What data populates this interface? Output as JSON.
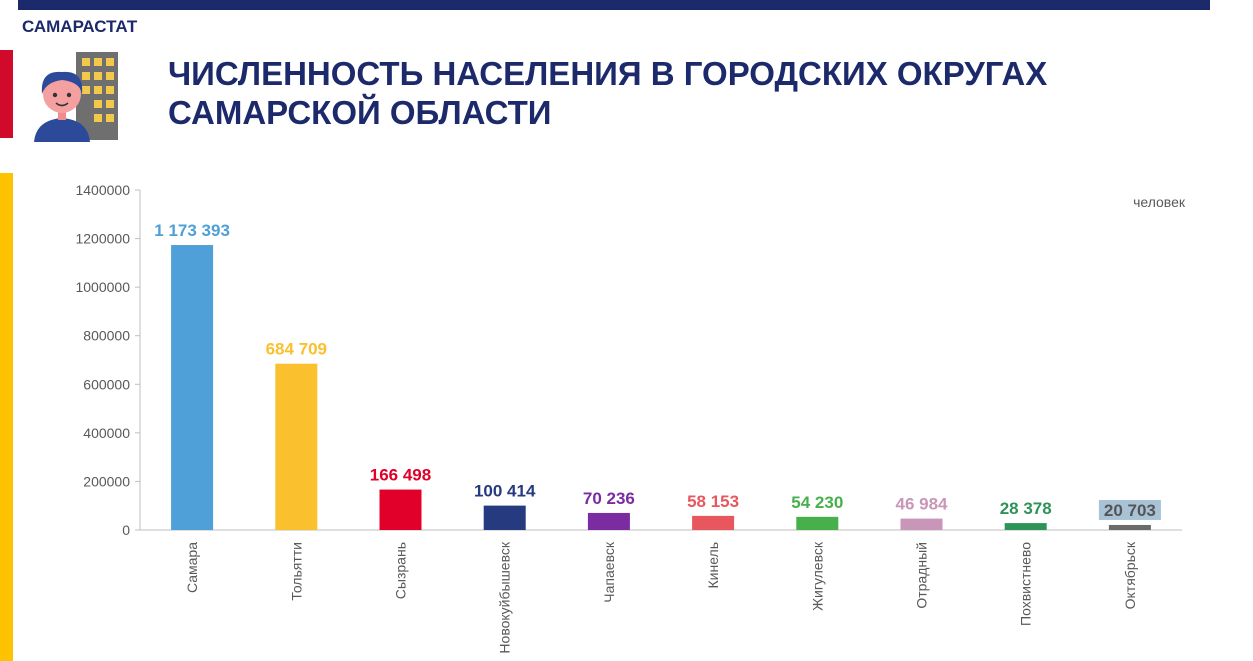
{
  "brand": "САМАРАСТАТ",
  "title_lines": [
    "ЧИСЛЕННОСТЬ НАСЕЛЕНИЯ В ГОРОДСКИХ ОКРУГАХ",
    "САМАРСКОЙ ОБЛАСТИ"
  ],
  "colors": {
    "brand_navy": "#1c2a6b",
    "accent_red": "#d10a2c",
    "accent_yellow": "#fdc300"
  },
  "chart_data": {
    "type": "bar",
    "unit_label": "человек",
    "categories": [
      "Самара",
      "Тольятти",
      "Сызрань",
      "Новокуйбышевск",
      "Чапаевск",
      "Кинель",
      "Жигулевск",
      "Отрадный",
      "Похвистнево",
      "Октябрьск"
    ],
    "values": [
      1173393,
      684709,
      166498,
      100414,
      70236,
      58153,
      54230,
      46984,
      28378,
      20703
    ],
    "value_labels": [
      "1 173 393",
      "684 709",
      "166 498",
      "100 414",
      "70 236",
      "58 153",
      "54 230",
      "46 984",
      "28 378",
      "20 703"
    ],
    "bar_colors": [
      "#4f9fd8",
      "#fbc02d",
      "#e0002a",
      "#263a80",
      "#7a2ca0",
      "#e8575e",
      "#47b04b",
      "#c995b8",
      "#2e9358",
      "#6b6b6b"
    ],
    "label_colors": [
      "#4f9fd8",
      "#fbc02d",
      "#e0002a",
      "#263a80",
      "#7a2ca0",
      "#e8575e",
      "#47b04b",
      "#c995b8",
      "#2e9358",
      "#555555"
    ],
    "yticks": [
      0,
      200000,
      400000,
      600000,
      800000,
      1000000,
      1200000,
      1400000
    ],
    "ylim": [
      0,
      1400000
    ],
    "grid": false,
    "title": "",
    "xlabel": "",
    "ylabel": ""
  }
}
